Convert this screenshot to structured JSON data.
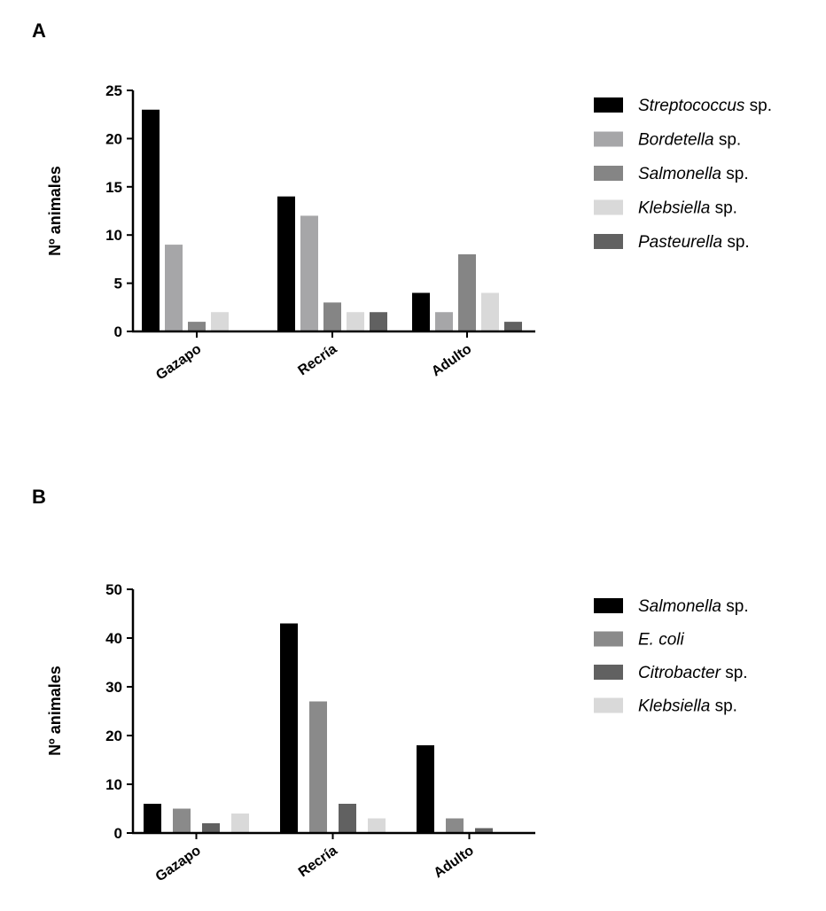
{
  "chart_data": [
    {
      "panel": "A",
      "type": "bar",
      "ylabel": "Nº animales",
      "ylim": [
        0,
        25
      ],
      "yticks": [
        0,
        5,
        10,
        15,
        20,
        25
      ],
      "categories": [
        "Gazapo",
        "Recría",
        "Adulto"
      ],
      "series": [
        {
          "name": "Streptococcus",
          "suffix": " sp.",
          "color": "#000000",
          "values": [
            23,
            14,
            4
          ]
        },
        {
          "name": "Bordetella",
          "suffix": " sp.",
          "color": "#a6a6a8",
          "values": [
            9,
            12,
            2
          ]
        },
        {
          "name": "Salmonella",
          "suffix": " sp.",
          "color": "#858585",
          "values": [
            1,
            3,
            8
          ]
        },
        {
          "name": "Klebsiella",
          "suffix": " sp.",
          "color": "#d9d9d9",
          "values": [
            2,
            2,
            4
          ]
        },
        {
          "name": "Pasteurella",
          "suffix": " sp.",
          "color": "#616161",
          "values": [
            0,
            2,
            1
          ]
        }
      ],
      "legend": "right"
    },
    {
      "panel": "B",
      "type": "bar",
      "ylabel": "Nº animales",
      "ylim": [
        0,
        50
      ],
      "yticks": [
        0,
        10,
        20,
        30,
        40,
        50
      ],
      "categories": [
        "Gazapo",
        "Recría",
        "Adulto"
      ],
      "series": [
        {
          "name": "Salmonella",
          "suffix": " sp.",
          "color": "#000000",
          "values": [
            6,
            43,
            18
          ]
        },
        {
          "name": "E. coli",
          "suffix": "",
          "color": "#8a8a8a",
          "values": [
            5,
            27,
            3
          ]
        },
        {
          "name": "Citrobacter",
          "suffix": " sp.",
          "color": "#616161",
          "values": [
            2,
            6,
            1
          ]
        },
        {
          "name": "Klebsiella",
          "suffix": " sp.",
          "color": "#d9d9d9",
          "values": [
            4,
            3,
            0
          ]
        }
      ],
      "legend": "right"
    }
  ]
}
